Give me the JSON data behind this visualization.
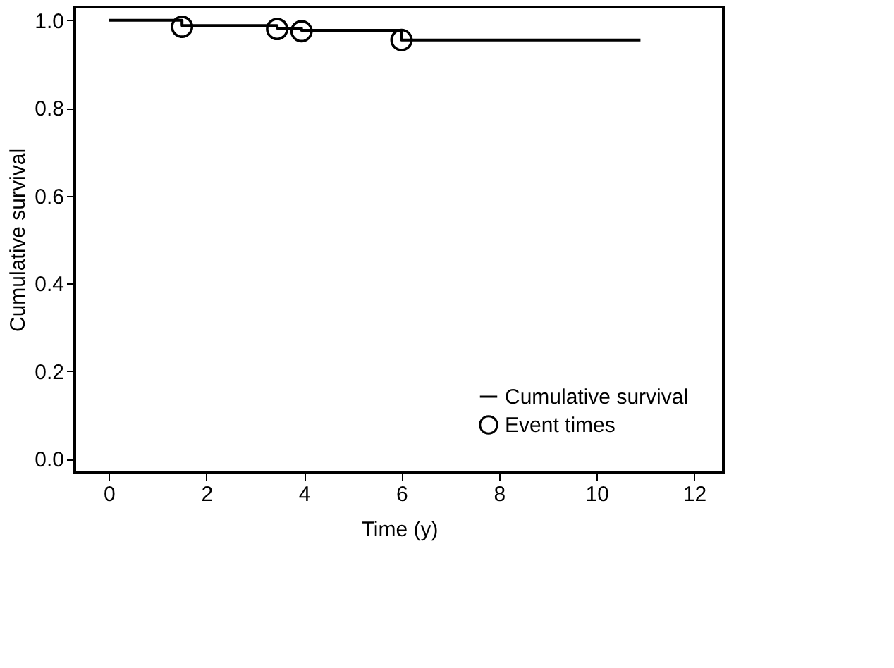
{
  "chart_data": {
    "type": "step",
    "xlabel": "Time (y)",
    "ylabel": "Cumulative survival",
    "xlim": [
      -0.7,
      12.6
    ],
    "xticks": [
      0,
      2,
      4,
      6,
      8,
      10,
      12
    ],
    "ylim": [
      -0.03,
      1.03
    ],
    "yticks": [
      {
        "value": 0,
        "label": "0.0"
      },
      0.2,
      0.4,
      0.6,
      0.8,
      {
        "value": 1,
        "label": "1.0"
      }
    ],
    "grid": false,
    "legend": "bottom right",
    "series": [
      {
        "name": "Cumulative survival",
        "color": "#000000",
        "marker": "none",
        "line_style": "solid",
        "x": [
          0,
          1.5,
          3.45,
          3.95,
          6.0,
          10.9
        ],
        "values": [
          1.0,
          0.988,
          0.982,
          0.977,
          0.955,
          0.955
        ]
      },
      {
        "name": "Event times",
        "type": "scatter",
        "color": "#000000",
        "marker": "circle",
        "x": [
          1.5,
          3.45,
          3.95,
          6.0
        ],
        "values": [
          0.985,
          0.98,
          0.975,
          0.955
        ]
      }
    ]
  }
}
